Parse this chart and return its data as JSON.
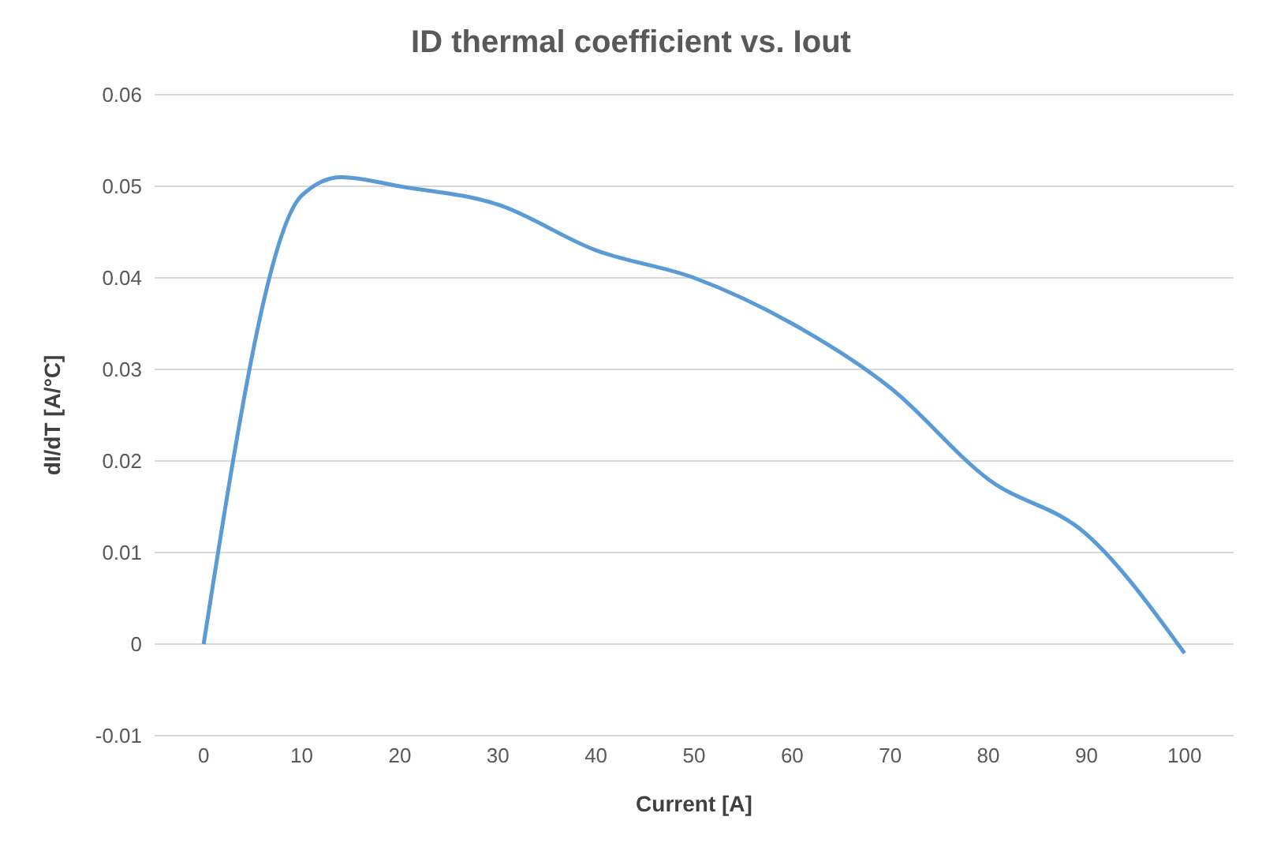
{
  "chart_data": {
    "type": "line",
    "title": "ID thermal coefficient vs. Iout",
    "xlabel": "Current [A]",
    "ylabel": "dI/dT [A/°C]",
    "x": [
      0,
      10,
      14,
      20,
      30,
      40,
      50,
      60,
      70,
      80,
      90,
      100
    ],
    "series": [
      {
        "color": "#5b9bd5",
        "values": [
          0,
          0.049,
          0.051,
          0.05,
          0.048,
          0.043,
          0.04,
          0.035,
          0.028,
          0.018,
          0.012,
          -0.001
        ]
      }
    ],
    "xlim": [
      -5,
      105
    ],
    "xticks": [
      0,
      10,
      20,
      30,
      40,
      50,
      60,
      70,
      80,
      90,
      100
    ],
    "ylim": [
      -0.01,
      0.06
    ],
    "yticks": [
      -0.01,
      0,
      0.01,
      0.02,
      0.03,
      0.04,
      0.05,
      0.06
    ],
    "grid": "y",
    "marker": "none",
    "line_style": "solid",
    "legend": false
  }
}
